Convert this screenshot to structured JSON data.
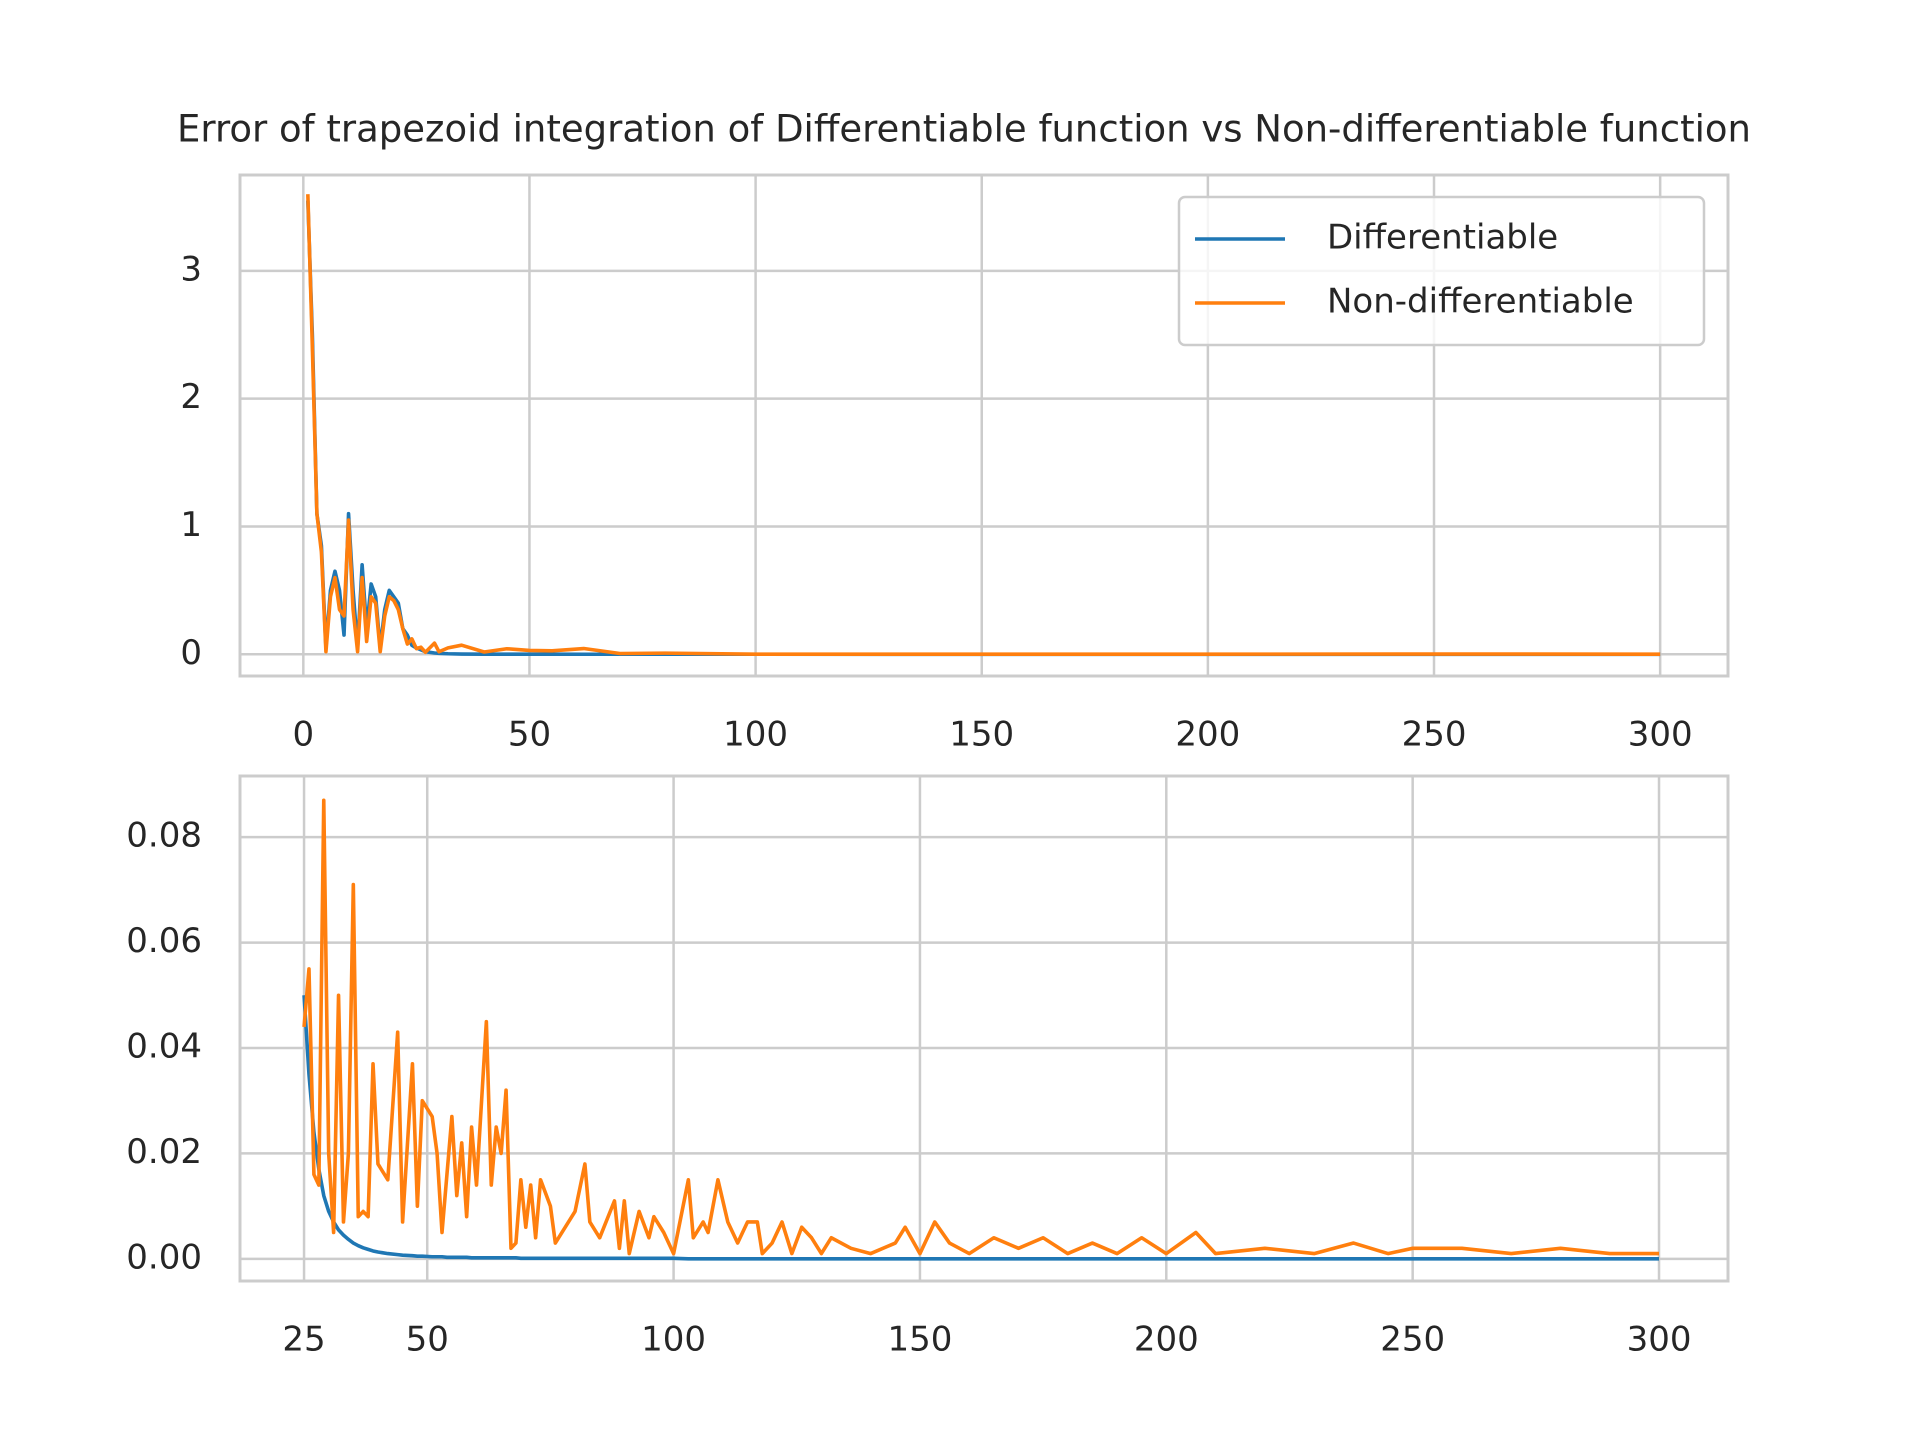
{
  "chart_data": [
    {
      "type": "line",
      "title": "Error of trapezoid integration of Differentiable function vs Non-differentiable function",
      "x": [
        1,
        2,
        3,
        4,
        5,
        6,
        7,
        8,
        9,
        10,
        11,
        12,
        13,
        14,
        15,
        16,
        17,
        18,
        19,
        20,
        21,
        22,
        23,
        24,
        25,
        26,
        27,
        29,
        30,
        32,
        35,
        40,
        45,
        50,
        55,
        62,
        70,
        80,
        100,
        150,
        200,
        250,
        300
      ],
      "series": [
        {
          "name": "Differentiable",
          "color": "#1f77b4",
          "values": [
            3.55,
            2.5,
            1.1,
            0.85,
            0.05,
            0.5,
            0.65,
            0.5,
            0.15,
            1.1,
            0.5,
            0.05,
            0.7,
            0.2,
            0.55,
            0.45,
            0.05,
            0.35,
            0.5,
            0.45,
            0.4,
            0.2,
            0.15,
            0.07,
            0.05,
            0.035,
            0.02,
            0.01,
            0.007,
            0.004,
            0.002,
            0.001,
            0.0006,
            0.0004,
            0.0003,
            0.0002,
            0.0002,
            0.0001,
            0.0001,
            0,
            0,
            0,
            0
          ]
        },
        {
          "name": "Non-differentiable",
          "color": "#ff7f0e",
          "values": [
            3.6,
            2.4,
            1.1,
            0.8,
            0.02,
            0.45,
            0.6,
            0.35,
            0.3,
            1.05,
            0.35,
            0.02,
            0.6,
            0.1,
            0.45,
            0.4,
            0.02,
            0.3,
            0.45,
            0.42,
            0.35,
            0.2,
            0.08,
            0.12,
            0.044,
            0.055,
            0.016,
            0.087,
            0.02,
            0.05,
            0.071,
            0.018,
            0.043,
            0.03,
            0.027,
            0.045,
            0.006,
            0.009,
            0.001,
            0.001,
            0.001,
            0.002,
            0.001
          ]
        }
      ],
      "xlim": [
        -14,
        315
      ],
      "ylim": [
        -0.17,
        3.75
      ],
      "xticks": [
        0,
        50,
        100,
        150,
        200,
        250,
        300
      ],
      "yticks": [
        0,
        1,
        2,
        3
      ],
      "grid": true,
      "legend": "upper right"
    },
    {
      "type": "line",
      "x": [
        25,
        26,
        27,
        28,
        29,
        30,
        31,
        32,
        33,
        34,
        35,
        36,
        37,
        38,
        39,
        40,
        42,
        44,
        45,
        47,
        48,
        49,
        51,
        52,
        53,
        54,
        55,
        56,
        57,
        58,
        59,
        60,
        62,
        63,
        64,
        65,
        66,
        67,
        68,
        69,
        70,
        71,
        72,
        73,
        75,
        76,
        80,
        82,
        83,
        85,
        88,
        89,
        90,
        91,
        93,
        95,
        96,
        98,
        100,
        103,
        104,
        106,
        107,
        109,
        111,
        113,
        115,
        117,
        118,
        120,
        122,
        124,
        126,
        128,
        130,
        132,
        136,
        140,
        145,
        147,
        150,
        153,
        156,
        160,
        165,
        170,
        175,
        180,
        185,
        190,
        195,
        200,
        206,
        210,
        220,
        230,
        238,
        245,
        250,
        260,
        270,
        280,
        290,
        300
      ],
      "series": [
        {
          "color": "#1f77b4",
          "values": [
            0.05,
            0.035,
            0.024,
            0.017,
            0.012,
            0.009,
            0.007,
            0.0055,
            0.0045,
            0.0037,
            0.003,
            0.0025,
            0.0021,
            0.0018,
            0.0015,
            0.0013,
            0.001,
            0.0008,
            0.0007,
            0.0006,
            0.0005,
            0.0005,
            0.0004,
            0.0004,
            0.0004,
            0.0003,
            0.0003,
            0.0003,
            0.0003,
            0.0003,
            0.0002,
            0.0002,
            0.0002,
            0.0002,
            0.0002,
            0.0002,
            0.0002,
            0.0002,
            0.0002,
            0.0001,
            0.0001,
            0.0001,
            0.0001,
            0.0001,
            0.0001,
            0.0001,
            0.0001,
            0.0001,
            0.0001,
            0.0001,
            0.0001,
            0.0001,
            0.0001,
            0.0001,
            0.0001,
            0.0001,
            0.0001,
            0.0001,
            0.0001,
            0,
            0,
            0,
            0,
            0,
            0,
            0,
            0,
            0,
            0,
            0,
            0,
            0,
            0,
            0,
            0,
            0,
            0,
            0,
            0,
            0,
            0,
            0,
            0,
            0,
            0,
            0,
            0,
            0,
            0,
            0,
            0,
            0,
            0,
            0,
            0,
            0,
            0,
            0,
            0,
            0,
            0,
            0,
            0,
            0
          ]
        },
        {
          "color": "#ff7f0e",
          "values": [
            0.044,
            0.055,
            0.016,
            0.014,
            0.087,
            0.02,
            0.005,
            0.05,
            0.007,
            0.02,
            0.071,
            0.008,
            0.009,
            0.008,
            0.037,
            0.018,
            0.015,
            0.043,
            0.007,
            0.037,
            0.01,
            0.03,
            0.027,
            0.02,
            0.005,
            0.016,
            0.027,
            0.012,
            0.022,
            0.008,
            0.025,
            0.014,
            0.045,
            0.014,
            0.025,
            0.02,
            0.032,
            0.002,
            0.003,
            0.015,
            0.006,
            0.014,
            0.004,
            0.015,
            0.01,
            0.003,
            0.009,
            0.018,
            0.007,
            0.004,
            0.011,
            0.002,
            0.011,
            0.001,
            0.009,
            0.004,
            0.008,
            0.005,
            0.001,
            0.015,
            0.004,
            0.007,
            0.005,
            0.015,
            0.007,
            0.003,
            0.007,
            0.007,
            0.001,
            0.003,
            0.007,
            0.001,
            0.006,
            0.004,
            0.001,
            0.004,
            0.002,
            0.001,
            0.003,
            0.006,
            0.001,
            0.007,
            0.003,
            0.001,
            0.004,
            0.002,
            0.004,
            0.001,
            0.003,
            0.001,
            0.004,
            0.001,
            0.005,
            0.001,
            0.002,
            0.001,
            0.003,
            0.001,
            0.002,
            0.002,
            0.001,
            0.002,
            0.001,
            0.001
          ]
        }
      ],
      "xlim": [
        12,
        314
      ],
      "ylim": [
        -0.0042,
        0.0916
      ],
      "xticks": [
        25,
        50,
        100,
        150,
        200,
        250,
        300
      ],
      "yticks": [
        {
          "value": 0,
          "label": "0.00"
        },
        {
          "value": 0.02,
          "label": "0.02"
        },
        {
          "value": 0.04,
          "label": "0.04"
        },
        {
          "value": 0.06,
          "label": "0.06"
        },
        {
          "value": 0.08,
          "label": "0.08"
        }
      ],
      "grid": true
    }
  ]
}
